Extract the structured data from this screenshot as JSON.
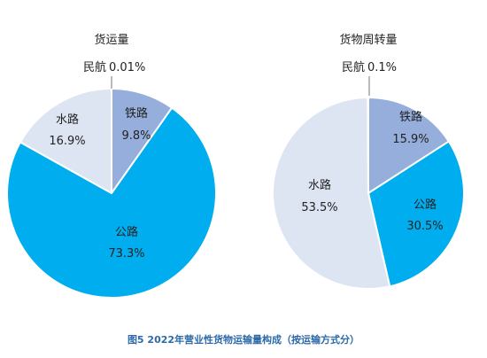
{
  "chart_data": [
    {
      "type": "pie",
      "title": "货运量",
      "slices": [
        {
          "name": "铁路",
          "value": 9.8,
          "label": "9.8%",
          "color": "#95aedb"
        },
        {
          "name": "公路",
          "value": 73.3,
          "label": "73.3%",
          "color": "#00adef"
        },
        {
          "name": "水路",
          "value": 16.9,
          "label": "16.9%",
          "color": "#dde5f3"
        },
        {
          "name": "民航",
          "value": 0.01,
          "label": "0.01%",
          "color": "#bfbfbf"
        }
      ]
    },
    {
      "type": "pie",
      "title": "货物周转量",
      "slices": [
        {
          "name": "铁路",
          "value": 15.9,
          "label": "15.9%",
          "color": "#95aedb"
        },
        {
          "name": "公路",
          "value": 30.5,
          "label": "30.5%",
          "color": "#00adef"
        },
        {
          "name": "水路",
          "value": 53.5,
          "label": "53.5%",
          "color": "#dde5f3"
        },
        {
          "name": "民航",
          "value": 0.1,
          "label": "0.1%",
          "color": "#bfbfbf"
        }
      ]
    }
  ],
  "caption": "图5  2022年营业性货物运输量构成（按运输方式分）"
}
